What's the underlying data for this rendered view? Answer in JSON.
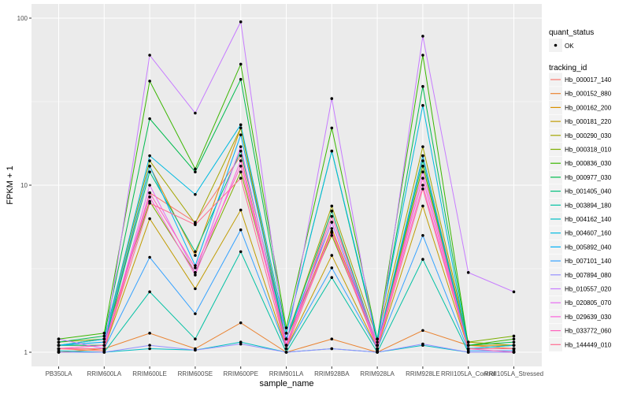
{
  "chart_data": {
    "type": "line",
    "xlabel": "sample_name",
    "ylabel": "FPKM + 1",
    "y_scale": "log10",
    "ylim": [
      0.95,
      110
    ],
    "y_ticks": [
      "1",
      "10",
      "100"
    ],
    "grid": true,
    "legend_placement": "right",
    "categories": [
      "PB350LA",
      "RRIM600LA",
      "RRIM600LE",
      "RRIM600SE",
      "RRIM600PE",
      "RRIM901LA",
      "RRIM928BA",
      "RRIM928LA",
      "RRIM928LE",
      "RRII105LA_Control",
      "RRII105LA_Stressed"
    ],
    "point_legend": {
      "title": "quant_status",
      "entries": [
        "OK"
      ]
    },
    "line_legend_title": "tracking_id",
    "series": [
      {
        "name": "Hb_000017_140",
        "color": "#F8766D",
        "values": [
          1.05,
          1.02,
          9,
          6,
          15,
          1.05,
          7,
          1.02,
          13,
          1.05,
          1.05
        ]
      },
      {
        "name": "Hb_000152_880",
        "color": "#EA8331",
        "values": [
          1.0,
          1.05,
          1.3,
          1.05,
          1.5,
          1.0,
          1.2,
          1.0,
          1.35,
          1.1,
          1.05
        ]
      },
      {
        "name": "Hb_000162_200",
        "color": "#D89000",
        "values": [
          1.1,
          1.1,
          13,
          3.8,
          22,
          1.1,
          5.5,
          1.1,
          15,
          1.1,
          1.1
        ]
      },
      {
        "name": "Hb_000181_220",
        "color": "#C09B00",
        "values": [
          1.05,
          1.05,
          6.3,
          2.4,
          7.1,
          1.05,
          3.8,
          1.05,
          7.5,
          1.05,
          1.05
        ]
      },
      {
        "name": "Hb_000290_030",
        "color": "#A3A500",
        "values": [
          1.1,
          1.2,
          14,
          5.9,
          22,
          1.2,
          7.5,
          1.2,
          17,
          1.15,
          1.1
        ]
      },
      {
        "name": "Hb_000318_010",
        "color": "#7CAE00",
        "values": [
          1.15,
          1.2,
          8,
          3,
          12,
          1.2,
          5,
          1.1,
          13,
          1.15,
          1.25
        ]
      },
      {
        "name": "Hb_000836_030",
        "color": "#39B600",
        "values": [
          1.2,
          1.3,
          42,
          12.5,
          53,
          1.4,
          22,
          1.2,
          60,
          1.1,
          1.2
        ]
      },
      {
        "name": "Hb_000977_030",
        "color": "#00BB4E",
        "values": [
          1.15,
          1.25,
          25,
          12,
          43,
          1.3,
          16,
          1.15,
          39,
          1.1,
          1.15
        ]
      },
      {
        "name": "Hb_001405_040",
        "color": "#00BF7D",
        "values": [
          1.1,
          1.1,
          12,
          4,
          16,
          1.2,
          7,
          1.1,
          14,
          1.05,
          1.1
        ]
      },
      {
        "name": "Hb_003894_180",
        "color": "#00C1A3",
        "values": [
          1.0,
          1.0,
          2.3,
          1.2,
          4.0,
          1.0,
          2.8,
          1.0,
          3.6,
          1.0,
          1.0
        ]
      },
      {
        "name": "Hb_004162_140",
        "color": "#00BFC4",
        "values": [
          1.02,
          1.0,
          1.05,
          1.03,
          1.15,
          1.0,
          1.05,
          1.0,
          1.1,
          1.0,
          1.0
        ]
      },
      {
        "name": "Hb_004607_160",
        "color": "#00BAE0",
        "values": [
          1.1,
          1.2,
          15,
          8.8,
          23,
          1.3,
          16,
          1.2,
          30,
          1.05,
          1.1
        ]
      },
      {
        "name": "Hb_005892_040",
        "color": "#00B0F6",
        "values": [
          1.1,
          1.15,
          13,
          3.3,
          20,
          1.2,
          6,
          1.1,
          15,
          1.05,
          1.05
        ]
      },
      {
        "name": "Hb_007101_140",
        "color": "#35A2FF",
        "values": [
          1.05,
          1.05,
          3.7,
          1.7,
          5.4,
          1.05,
          3.2,
          1.05,
          5,
          1.02,
          1.02
        ]
      },
      {
        "name": "Hb_007894_080",
        "color": "#9590FF",
        "values": [
          1.0,
          1.0,
          1.1,
          1.03,
          1.12,
          1.0,
          1.05,
          1.0,
          1.12,
          1.0,
          1.0
        ]
      },
      {
        "name": "Hb_010557_020",
        "color": "#C77CFF",
        "values": [
          1.2,
          1.05,
          60,
          27,
          95,
          1.1,
          33,
          1.02,
          78,
          3.0,
          2.3
        ]
      },
      {
        "name": "Hb_020805_070",
        "color": "#E76BF3",
        "values": [
          1.05,
          1.05,
          10,
          3,
          17,
          1.1,
          6,
          1.05,
          12,
          1.05,
          1.05
        ]
      },
      {
        "name": "Hb_029639_030",
        "color": "#FA62DB",
        "values": [
          1.05,
          1.1,
          8.5,
          2.9,
          14,
          1.1,
          5.3,
          1.1,
          10,
          1.05,
          1.05
        ]
      },
      {
        "name": "Hb_033772_060",
        "color": "#FF62BC",
        "values": [
          1.05,
          1.1,
          9,
          3.2,
          13,
          1.1,
          6.5,
          1.1,
          11,
          1.05,
          1.0
        ]
      },
      {
        "name": "Hb_144449_010",
        "color": "#FF6C91",
        "values": [
          1.05,
          1.05,
          7.8,
          5.8,
          11,
          1.05,
          5.2,
          1.05,
          9.5,
          1.05,
          1.05
        ]
      }
    ]
  }
}
